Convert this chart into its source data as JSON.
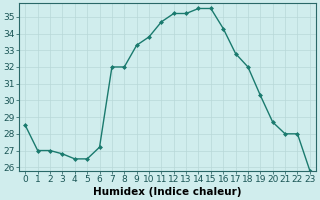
{
  "x": [
    0,
    1,
    2,
    3,
    4,
    5,
    6,
    7,
    8,
    9,
    10,
    11,
    12,
    13,
    14,
    15,
    16,
    17,
    18,
    19,
    20,
    21,
    22,
    23
  ],
  "y": [
    28.5,
    27.0,
    27.0,
    26.8,
    26.5,
    26.5,
    27.2,
    32.0,
    32.0,
    33.3,
    33.8,
    34.7,
    35.2,
    35.2,
    35.5,
    35.5,
    34.3,
    32.8,
    32.0,
    30.3,
    28.7,
    28.0,
    28.0,
    25.8
  ],
  "line_color": "#1a7a6e",
  "marker": "D",
  "markersize": 2.0,
  "linewidth": 1.0,
  "xlabel": "Humidex (Indice chaleur)",
  "xlabel_fontsize": 7.5,
  "ylim": [
    25.8,
    35.8
  ],
  "xlim": [
    -0.5,
    23.5
  ],
  "yticks": [
    26,
    27,
    28,
    29,
    30,
    31,
    32,
    33,
    34,
    35
  ],
  "xticks": [
    0,
    1,
    2,
    3,
    4,
    5,
    6,
    7,
    8,
    9,
    10,
    11,
    12,
    13,
    14,
    15,
    16,
    17,
    18,
    19,
    20,
    21,
    22,
    23
  ],
  "xtick_labels": [
    "0",
    "1",
    "2",
    "3",
    "4",
    "5",
    "6",
    "7",
    "8",
    "9",
    "10",
    "11",
    "12",
    "13",
    "14",
    "15",
    "16",
    "17",
    "18",
    "19",
    "20",
    "21",
    "22",
    "23"
  ],
  "grid_color": "#b8d8d8",
  "bg_color": "#d0eded",
  "tick_fontsize": 6.5,
  "spine_color": "#2a6868"
}
